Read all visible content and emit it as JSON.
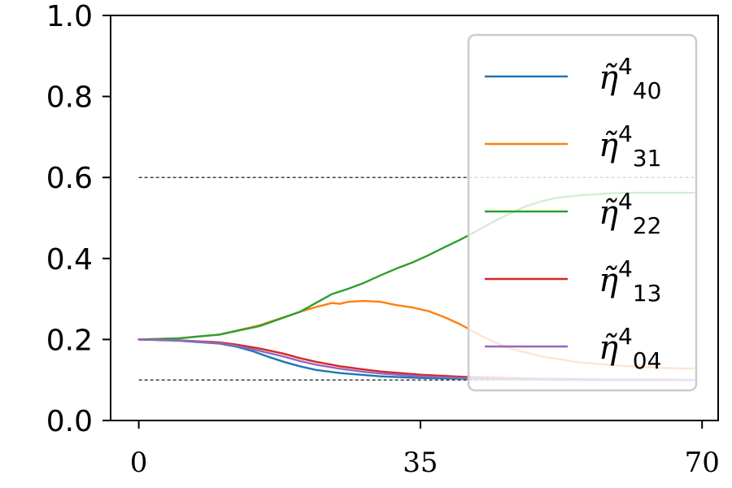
{
  "chart_data": {
    "type": "line",
    "title": "",
    "xlabel": "",
    "ylabel": "",
    "xlim": [
      -3.5,
      72
    ],
    "ylim": [
      0,
      1
    ],
    "xticks": [
      0,
      35,
      70
    ],
    "xtick_labels": [
      "0",
      "35",
      "70"
    ],
    "yticks": [
      0.0,
      0.2,
      0.4,
      0.6,
      0.8,
      1.0
    ],
    "ytick_labels": [
      "0.0",
      "0.2",
      "0.4",
      "0.6",
      "0.8",
      "1.0"
    ],
    "grid": false,
    "legend_position": "upper-right",
    "reference_lines": [
      {
        "y": 0.6,
        "style": "dashed",
        "color": "#000000"
      },
      {
        "y": 0.1,
        "style": "dashed",
        "color": "#000000"
      }
    ],
    "series": [
      {
        "name": "η̃⁴₄₀",
        "sym": "η̃",
        "sup": "4",
        "sub": "40",
        "color": "#1f77b4",
        "x": [
          0,
          5,
          10,
          12,
          14,
          16,
          18,
          20,
          22,
          25,
          30,
          35,
          40,
          45,
          50,
          55,
          60,
          65,
          69
        ],
        "values": [
          0.2,
          0.197,
          0.19,
          0.183,
          0.172,
          0.158,
          0.145,
          0.134,
          0.125,
          0.117,
          0.109,
          0.105,
          0.103,
          0.102,
          0.101,
          0.1,
          0.1,
          0.1,
          0.1
        ]
      },
      {
        "name": "η̃⁴₃₁",
        "sym": "η̃",
        "sup": "4",
        "sub": "31",
        "color": "#ff7f0e",
        "x": [
          0,
          5,
          10,
          15,
          20,
          22,
          24,
          25,
          26,
          28,
          30,
          32,
          34,
          36,
          38,
          40,
          42,
          44,
          46,
          50,
          55,
          60,
          65,
          69
        ],
        "values": [
          0.2,
          0.203,
          0.212,
          0.235,
          0.268,
          0.28,
          0.29,
          0.288,
          0.293,
          0.295,
          0.293,
          0.285,
          0.279,
          0.27,
          0.255,
          0.237,
          0.215,
          0.195,
          0.179,
          0.158,
          0.143,
          0.135,
          0.13,
          0.128
        ]
      },
      {
        "name": "η̃⁴₂₂",
        "sym": "η̃",
        "sup": "4",
        "sub": "22",
        "color": "#2ca02c",
        "x": [
          0,
          5,
          10,
          15,
          20,
          22,
          24,
          26,
          28,
          30,
          32,
          34,
          36,
          38,
          40,
          42,
          44,
          46,
          48,
          50,
          52,
          55,
          58,
          60,
          65,
          69
        ],
        "values": [
          0.2,
          0.203,
          0.212,
          0.233,
          0.268,
          0.29,
          0.312,
          0.325,
          0.34,
          0.358,
          0.375,
          0.39,
          0.408,
          0.428,
          0.447,
          0.468,
          0.49,
          0.51,
          0.528,
          0.541,
          0.55,
          0.556,
          0.56,
          0.562,
          0.562,
          0.562
        ]
      },
      {
        "name": "η̃⁴₁₃",
        "sym": "η̃",
        "sup": "4",
        "sub": "13",
        "color": "#d62728",
        "x": [
          0,
          5,
          10,
          12,
          15,
          18,
          20,
          22,
          25,
          28,
          30,
          35,
          40,
          45,
          50,
          55,
          60,
          65,
          69
        ],
        "values": [
          0.2,
          0.198,
          0.193,
          0.188,
          0.178,
          0.165,
          0.154,
          0.145,
          0.134,
          0.126,
          0.121,
          0.113,
          0.108,
          0.105,
          0.103,
          0.102,
          0.101,
          0.101,
          0.1
        ]
      },
      {
        "name": "η̃⁴₀₄",
        "sym": "η̃",
        "sup": "4",
        "sub": "04",
        "color": "#9467bd",
        "x": [
          0,
          5,
          10,
          12,
          15,
          18,
          20,
          22,
          25,
          28,
          30,
          35,
          40,
          45,
          50,
          55,
          60,
          65,
          69
        ],
        "values": [
          0.2,
          0.198,
          0.191,
          0.185,
          0.172,
          0.158,
          0.147,
          0.138,
          0.128,
          0.12,
          0.116,
          0.109,
          0.105,
          0.103,
          0.102,
          0.101,
          0.101,
          0.1,
          0.1
        ]
      }
    ]
  }
}
